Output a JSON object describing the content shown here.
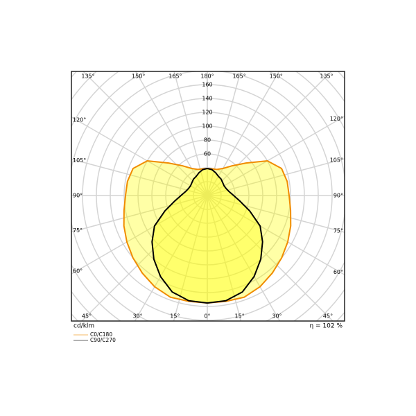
{
  "chart_data": {
    "type": "polar",
    "angles": [
      0,
      10,
      20,
      30,
      40,
      50,
      60,
      70,
      80,
      90,
      100,
      110,
      120,
      130,
      140,
      150,
      160,
      170,
      180
    ],
    "series": [
      {
        "name": "C0/C180",
        "color": "#f08c00",
        "values": [
          155,
          155,
          156,
          152,
          146,
          140,
          134,
          128,
          122,
          118,
          117,
          114,
          100,
          73,
          56,
          45,
          40,
          39,
          39
        ]
      },
      {
        "name": "C90/C270",
        "color": "#000000",
        "values": [
          155,
          154,
          148,
          135,
          120,
          104,
          88,
          65,
          48,
          38,
          32,
          29,
          28,
          29,
          31,
          32,
          35,
          38,
          39
        ]
      }
    ],
    "rticks": [
      60,
      80,
      100,
      120,
      140,
      160
    ],
    "rgrid_step": 20,
    "angle_ticks": [
      {
        "value": 0,
        "label": "0°"
      },
      {
        "value": 15,
        "label": "15°"
      },
      {
        "value": 30,
        "label": "30°"
      },
      {
        "value": 45,
        "label": "45°"
      },
      {
        "value": 60,
        "label": "60°"
      },
      {
        "value": 75,
        "label": "75°"
      },
      {
        "value": 90,
        "label": "90°"
      },
      {
        "value": 105,
        "label": "105°"
      },
      {
        "value": 120,
        "label": "120°"
      },
      {
        "value": 135,
        "label": "135°"
      },
      {
        "value": 150,
        "label": "150°"
      },
      {
        "value": 165,
        "label": "165°"
      },
      {
        "value": 180,
        "label": "180°"
      }
    ],
    "unit_label": "cd/klm",
    "efficiency_label": "η = 102 %",
    "grid": true
  }
}
